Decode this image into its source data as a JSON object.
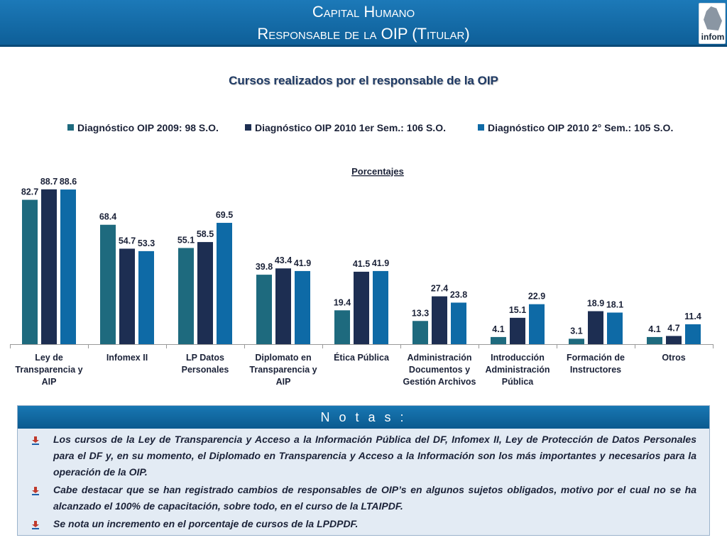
{
  "header": {
    "title": "Capital Humano",
    "subtitle": "Responsable de la OIP (Titular)",
    "logo_text": "infom"
  },
  "chart_title": "Cursos realizados por el responsable de la OIP",
  "chart_data": {
    "type": "bar",
    "title": "Cursos realizados por el responsable de la OIP",
    "annotation": "Porcentajes",
    "legend_position": "top",
    "grid": false,
    "ylim": [
      0,
      100
    ],
    "categories": [
      [
        "Ley de",
        "Transparencia y",
        "AIP"
      ],
      [
        "Infomex II"
      ],
      [
        "LP Datos",
        "Personales"
      ],
      [
        "Diplomato en",
        "Transparencia y",
        "AIP"
      ],
      [
        "Ética Pública"
      ],
      [
        "Administración",
        "Documentos y",
        "Gestión Archivos"
      ],
      [
        "Introducción",
        "Administración",
        "Pública"
      ],
      [
        "Formación de",
        "Instructores"
      ],
      [
        "Otros"
      ]
    ],
    "series": [
      {
        "name": "Diagnóstico OIP 2009: 98 S.O.",
        "color": "#1e6a7e",
        "values": [
          82.7,
          68.4,
          55.1,
          39.8,
          19.4,
          13.3,
          4.1,
          3.1,
          4.1
        ]
      },
      {
        "name": "Diagnóstico OIP 2010 1er Sem.: 106 S.O.",
        "color": "#1d2e52",
        "values": [
          88.7,
          54.7,
          58.5,
          43.4,
          41.5,
          27.4,
          15.1,
          18.9,
          4.7
        ]
      },
      {
        "name": "Diagnóstico OIP 2010 2° Sem.: 105 S.O.",
        "color": "#0e6aa6",
        "values": [
          88.6,
          53.3,
          69.5,
          41.9,
          41.9,
          23.8,
          22.9,
          18.1,
          11.4
        ]
      }
    ]
  },
  "notes": {
    "title": "N o t a s :",
    "items": [
      "Los cursos de la Ley de Transparencia y Acceso a la Información Pública del DF, Infomex II, Ley de Protección de Datos Personales para el DF y, en su momento, el Diplomado en Transparencia y Acceso a la Información son los más importantes y necesarios para la operación de la OIP.",
      "Cabe destacar que se han registrado cambios de responsables de OIP’s en algunos sujetos obligados, motivo por el cual no se ha alcanzado el 100% de capacitación, sobre todo, en el curso de la LTAIPDF.",
      "Se nota un incremento en el porcentaje de cursos de la LPDPDF."
    ],
    "bullet_icon": "bullet-arrow-icon"
  }
}
